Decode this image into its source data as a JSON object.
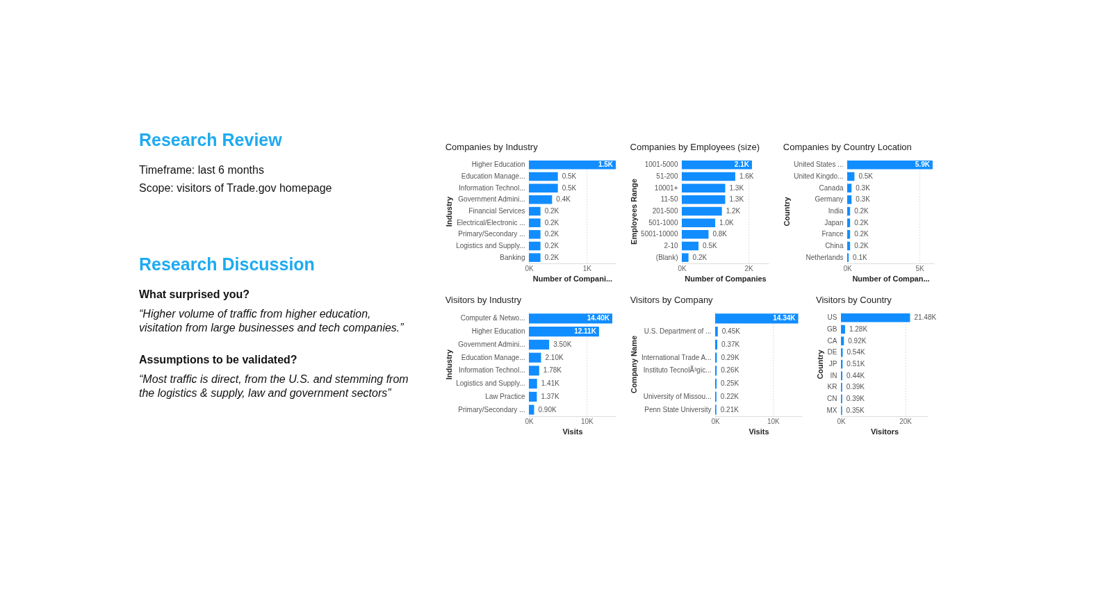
{
  "chart_data": [
    {
      "type": "other",
      "title": "Research Review",
      "annotations": [
        "Timeframe: last 6 months",
        "Scope: visitors of Trade.gov homepage"
      ]
    },
    {
      "type": "other",
      "title": "Research Discussion",
      "annotations": [
        "What surprised you?",
        "“Higher volume of traffic from higher education, visitation from large businesses and tech companies.”",
        "Assumptions to be validated?",
        "“Most traffic is direct, from the U.S. and stemming from the logistics & supply, law and government sectors”"
      ]
    },
    {
      "type": "bar",
      "orientation": "horizontal",
      "title": "Companies by Industry",
      "ylabel": "Industry",
      "xlabel": "Number of Compani...",
      "color": "#118dff",
      "grid": "x",
      "categories": [
        "Higher Education",
        "Education Manage...",
        "Information Technol...",
        "Government Admini...",
        "Financial Services",
        "Electrical/Electronic ...",
        "Primary/Secondary ...",
        "Logistics and Supply...",
        "Banking"
      ],
      "values": [
        1500,
        500,
        500,
        400,
        200,
        200,
        200,
        200,
        200
      ],
      "value_labels": [
        "1.5K",
        "0.5K",
        "0.5K",
        "0.4K",
        "0.2K",
        "0.2K",
        "0.2K",
        "0.2K",
        "0.2K"
      ],
      "xlim": [
        0,
        1500
      ],
      "xticks": [
        {
          "value": 0,
          "label": "0K"
        },
        {
          "value": 1000,
          "label": "1K"
        }
      ]
    },
    {
      "type": "bar",
      "orientation": "horizontal",
      "title": "Companies by Employees (size)",
      "ylabel": "Employees Range",
      "xlabel": "Number of Companies",
      "color": "#118dff",
      "grid": "x",
      "categories": [
        "1001-5000",
        "51-200",
        "10001+",
        "11-50",
        "201-500",
        "501-1000",
        "5001-10000",
        "2-10",
        "(Blank)"
      ],
      "values": [
        2100,
        1600,
        1300,
        1300,
        1200,
        1000,
        800,
        500,
        200
      ],
      "value_labels": [
        "2.1K",
        "1.6K",
        "1.3K",
        "1.3K",
        "1.2K",
        "1.0K",
        "0.8K",
        "0.5K",
        "0.2K"
      ],
      "xlim": [
        0,
        2600
      ],
      "xticks": [
        {
          "value": 0,
          "label": "0K"
        },
        {
          "value": 2000,
          "label": "2K"
        }
      ]
    },
    {
      "type": "bar",
      "orientation": "horizontal",
      "title": "Companies by Country Location",
      "ylabel": "Country",
      "xlabel": "Number of Compan...",
      "color": "#118dff",
      "grid": "x",
      "categories": [
        "United States ...",
        "United Kingdo...",
        "Canada",
        "Germany",
        "India",
        "Japan",
        "France",
        "China",
        "Netherlands"
      ],
      "values": [
        5900,
        500,
        300,
        300,
        200,
        200,
        200,
        200,
        100
      ],
      "value_labels": [
        "5.9K",
        "0.5K",
        "0.3K",
        "0.3K",
        "0.2K",
        "0.2K",
        "0.2K",
        "0.2K",
        "0.1K"
      ],
      "xlim": [
        0,
        6000
      ],
      "xticks": [
        {
          "value": 0,
          "label": "0K"
        },
        {
          "value": 5000,
          "label": "5K"
        }
      ]
    },
    {
      "type": "bar",
      "orientation": "horizontal",
      "title": "Visitors by Industry",
      "ylabel": "Industry",
      "xlabel": "Visits",
      "color": "#118dff",
      "grid": "x",
      "categories": [
        "Computer & Netwo...",
        "Higher Education",
        "Government Admini...",
        "Education Manage...",
        "Information Technol...",
        "Logistics and Supply...",
        "Law Practice",
        "Primary/Secondary ..."
      ],
      "values": [
        14400,
        12110,
        3500,
        2100,
        1780,
        1410,
        1370,
        900
      ],
      "value_labels": [
        "14.40K",
        "12.11K",
        "3.50K",
        "2.10K",
        "1.78K",
        "1.41K",
        "1.37K",
        "0.90K"
      ],
      "xlim": [
        0,
        15000
      ],
      "xticks": [
        {
          "value": 0,
          "label": "0K"
        },
        {
          "value": 10000,
          "label": "10K"
        }
      ]
    },
    {
      "type": "bar",
      "orientation": "horizontal",
      "title": "Visitors by Company",
      "ylabel": "Company Name",
      "xlabel": "Visits",
      "color": "#118dff",
      "grid": "x",
      "categories": [
        null,
        "U.S. Department of ...",
        null,
        "International Trade A...",
        "Instituto TecnolÃ³gic...",
        null,
        "University of Missou...",
        "Penn State University"
      ],
      "values": [
        14340,
        450,
        370,
        290,
        260,
        250,
        220,
        210
      ],
      "value_labels": [
        "14.34K",
        "0.45K",
        "0.37K",
        "0.29K",
        "0.26K",
        "0.25K",
        "0.22K",
        "0.21K"
      ],
      "xlim": [
        0,
        15000
      ],
      "xticks": [
        {
          "value": 0,
          "label": "0K"
        },
        {
          "value": 10000,
          "label": "10K"
        }
      ]
    },
    {
      "type": "bar",
      "orientation": "horizontal",
      "title": "Visitors by Country",
      "ylabel": "Country",
      "xlabel": "Visitors",
      "color": "#118dff",
      "grid": "x",
      "categories": [
        "US",
        "GB",
        "CA",
        "DE",
        "JP",
        "IN",
        "KR",
        "CN",
        "MX"
      ],
      "values": [
        21480,
        1280,
        920,
        540,
        510,
        440,
        390,
        390,
        350
      ],
      "value_labels": [
        "21.48K",
        "1.28K",
        "0.92K",
        "0.54K",
        "0.51K",
        "0.44K",
        "0.39K",
        "0.39K",
        "0.35K"
      ],
      "xlim": [
        0,
        27000
      ],
      "xticks": [
        {
          "value": 0,
          "label": "0K"
        },
        {
          "value": 20000,
          "label": "20K"
        }
      ]
    }
  ]
}
